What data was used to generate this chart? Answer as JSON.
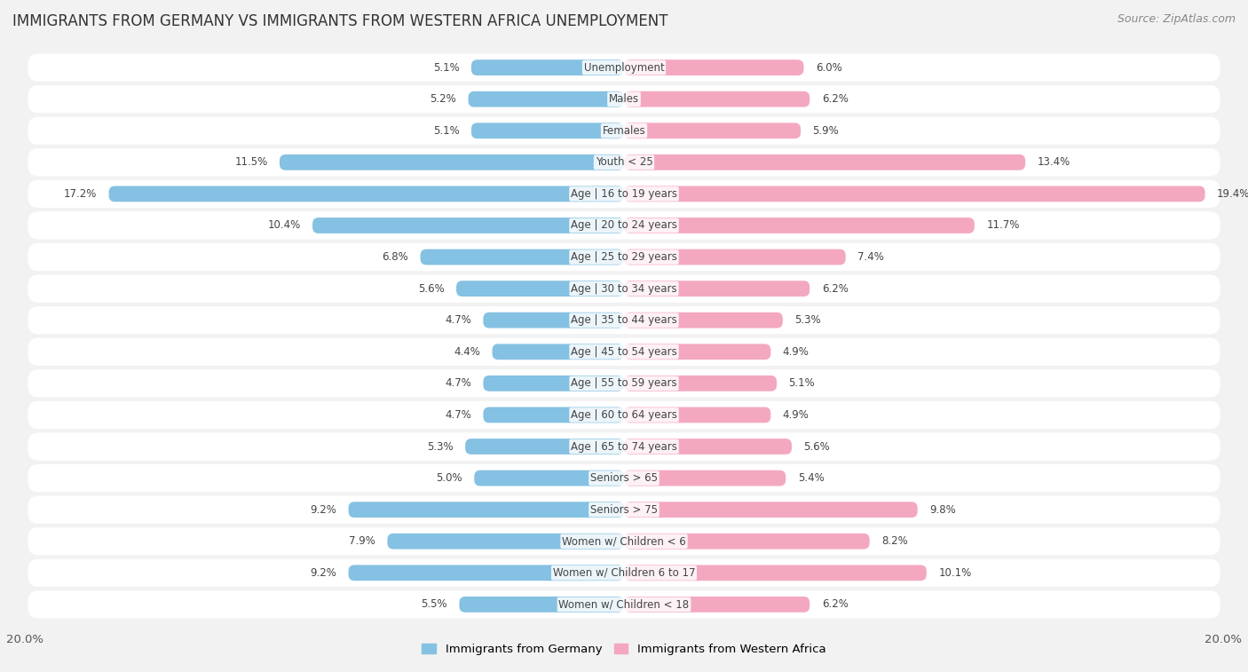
{
  "title": "IMMIGRANTS FROM GERMANY VS IMMIGRANTS FROM WESTERN AFRICA UNEMPLOYMENT",
  "source": "Source: ZipAtlas.com",
  "categories": [
    "Unemployment",
    "Males",
    "Females",
    "Youth < 25",
    "Age | 16 to 19 years",
    "Age | 20 to 24 years",
    "Age | 25 to 29 years",
    "Age | 30 to 34 years",
    "Age | 35 to 44 years",
    "Age | 45 to 54 years",
    "Age | 55 to 59 years",
    "Age | 60 to 64 years",
    "Age | 65 to 74 years",
    "Seniors > 65",
    "Seniors > 75",
    "Women w/ Children < 6",
    "Women w/ Children 6 to 17",
    "Women w/ Children < 18"
  ],
  "germany_values": [
    5.1,
    5.2,
    5.1,
    11.5,
    17.2,
    10.4,
    6.8,
    5.6,
    4.7,
    4.4,
    4.7,
    4.7,
    5.3,
    5.0,
    9.2,
    7.9,
    9.2,
    5.5
  ],
  "western_africa_values": [
    6.0,
    6.2,
    5.9,
    13.4,
    19.4,
    11.7,
    7.4,
    6.2,
    5.3,
    4.9,
    5.1,
    4.9,
    5.6,
    5.4,
    9.8,
    8.2,
    10.1,
    6.2
  ],
  "germany_color": "#85c1e2",
  "western_africa_color": "#f4a8c0",
  "germany_color_dark": "#5ba8d4",
  "western_africa_color_dark": "#ef7ca0",
  "background_color": "#f2f2f2",
  "row_bg_color": "#ffffff",
  "row_alt_bg_color": "#e8e8e8",
  "xlim": 20.0,
  "label_germany": "Immigrants from Germany",
  "label_western_africa": "Immigrants from Western Africa",
  "title_fontsize": 12,
  "source_fontsize": 9,
  "category_fontsize": 8.5,
  "value_fontsize": 8.5
}
